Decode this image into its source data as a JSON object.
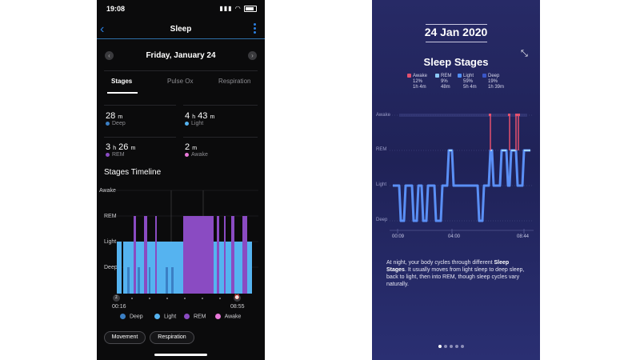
{
  "garmin": {
    "status": {
      "time": "19:08"
    },
    "nav": {
      "title": "Sleep"
    },
    "date": "Friday, January 24",
    "tabs": [
      {
        "label": "Stages"
      },
      {
        "label": "Pulse Ox"
      },
      {
        "label": "Respiration"
      }
    ],
    "stats": [
      {
        "h": "",
        "h_unit": "",
        "m": "28",
        "m_unit": "m",
        "label": "Deep",
        "color": "#3b7fc4"
      },
      {
        "h": "4",
        "h_unit": "h",
        "m": "43",
        "m_unit": "m",
        "label": "Light",
        "color": "#55b3f0"
      },
      {
        "h": "3",
        "h_unit": "h",
        "m": "26",
        "m_unit": "m",
        "label": "REM",
        "color": "#8a4bc2"
      },
      {
        "h": "",
        "h_unit": "",
        "m": "2",
        "m_unit": "m",
        "label": "Awake",
        "color": "#e878d8"
      }
    ],
    "timeline_title": "Stages Timeline",
    "y_labels": [
      "Awake",
      "REM",
      "Light",
      "Deep"
    ],
    "start_time": "00:16",
    "end_time": "08:55",
    "legend": [
      {
        "label": "Deep",
        "color": "#3b7fc4"
      },
      {
        "label": "Light",
        "color": "#55b3f0"
      },
      {
        "label": "REM",
        "color": "#8a4bc2"
      },
      {
        "label": "Awake",
        "color": "#e878d8"
      }
    ],
    "buttons": {
      "movement": "Movement",
      "respiration": "Respiration"
    }
  },
  "fitbit": {
    "date": "24 Jan 2020",
    "title": "Sleep Stages",
    "legend": [
      {
        "label": "Awake",
        "pct": "12%",
        "dur": "1h 4m",
        "color": "#e4506e"
      },
      {
        "label": "REM",
        "pct": "9%",
        "dur": "48m",
        "color": "#8cc8f5"
      },
      {
        "label": "Light",
        "pct": "59%",
        "dur": "5h 4m",
        "color": "#4f8ef5"
      },
      {
        "label": "Deep",
        "pct": "19%",
        "dur": "1h 39m",
        "color": "#3a56c8"
      }
    ],
    "y_labels": [
      "Awake",
      "REM",
      "Light",
      "Deep"
    ],
    "x_labels": [
      "00:09",
      "04:00",
      "08:44"
    ],
    "desc_prefix": "At night, your body cycles through different ",
    "desc_bold": "Sleep Stages",
    "desc_suffix": ". It usually moves from light sleep to deep sleep, back to light, then into REM, though sleep cycles vary naturally."
  }
}
